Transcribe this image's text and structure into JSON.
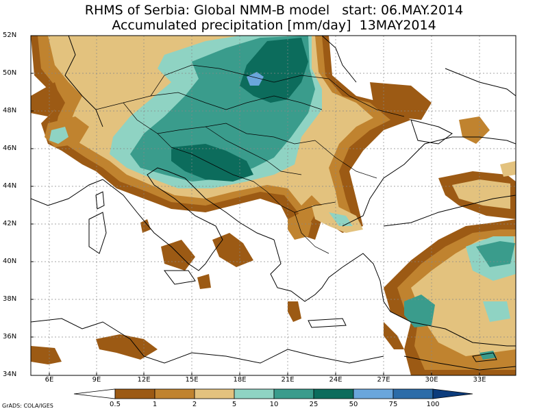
{
  "title": "RHMS of Serbia: Global NMM-B model   start: 06.MAY.2014",
  "subtitle": "Accumulated precipitation [mm/day]  13MAY2014",
  "lat_labels": [
    "52N",
    "50N",
    "48N",
    "46N",
    "44N",
    "42N",
    "40N",
    "38N",
    "36N",
    "34N"
  ],
  "lon_labels": [
    "6E",
    "9E",
    "12E",
    "15E",
    "18E",
    "21E",
    "24E",
    "27E",
    "30E",
    "33E"
  ],
  "colorbar": {
    "labels": [
      "0.5",
      "1",
      "2",
      "5",
      "10",
      "25",
      "50",
      "75",
      "100"
    ],
    "colors": [
      "#ffffff",
      "#9c5a14",
      "#c0832f",
      "#e3c27e",
      "#8fd3c3",
      "#3a9c8c",
      "#0c6c5c",
      "#6aa6dc",
      "#2c6ca8",
      "#0c3c7c"
    ]
  },
  "credit": "GrADS: COLA/IGES"
}
